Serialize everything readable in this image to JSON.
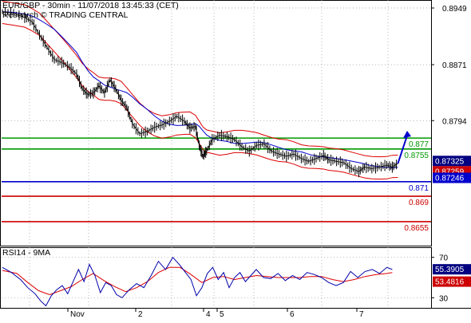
{
  "header": {
    "title": "EUR/GBP - 30min - 11/07/2018 13:45:33 (CET)",
    "subtitle": "Research © TRADING CENTRAL"
  },
  "rsi_label": "RSI14 - 9MA",
  "chart_data": [
    {
      "type": "candlestick",
      "title": "EUR/GBP - 30min - 11/07/2018 13:45:33 (CET)",
      "ylim": [
        0.8622,
        0.896
      ],
      "y_ticks": [
        "0.8949",
        "0.8871",
        "0.8794"
      ],
      "x_ticks": [
        "Nov",
        "2",
        "4",
        "5",
        "6",
        "7"
      ],
      "grid": true,
      "series_shown": [
        "price",
        "moving average",
        "bollinger bands"
      ],
      "price_path": [
        [
          0,
          0.8944
        ],
        [
          6,
          0.8942
        ],
        [
          12,
          0.8936
        ],
        [
          16,
          0.893
        ],
        [
          20,
          0.8912
        ],
        [
          24,
          0.8895
        ],
        [
          28,
          0.8878
        ],
        [
          32,
          0.8874
        ],
        [
          36,
          0.8868
        ],
        [
          40,
          0.8858
        ],
        [
          43,
          0.8838
        ],
        [
          46,
          0.883
        ],
        [
          49,
          0.8832
        ],
        [
          52,
          0.8842
        ],
        [
          55,
          0.8832
        ],
        [
          58,
          0.885
        ],
        [
          61,
          0.8838
        ],
        [
          64,
          0.8822
        ],
        [
          67,
          0.8812
        ],
        [
          70,
          0.879
        ],
        [
          74,
          0.8776
        ],
        [
          78,
          0.8779
        ],
        [
          82,
          0.8785
        ],
        [
          86,
          0.8788
        ],
        [
          90,
          0.8793
        ],
        [
          94,
          0.88
        ],
        [
          98,
          0.8793
        ],
        [
          101,
          0.8784
        ],
        [
          104,
          0.8786
        ],
        [
          106,
          0.876
        ],
        [
          108,
          0.8745
        ],
        [
          110,
          0.8752
        ],
        [
          113,
          0.8768
        ],
        [
          117,
          0.8774
        ],
        [
          121,
          0.8772
        ],
        [
          125,
          0.8768
        ],
        [
          129,
          0.8758
        ],
        [
          133,
          0.8752
        ],
        [
          137,
          0.876
        ],
        [
          141,
          0.8762
        ],
        [
          145,
          0.8752
        ],
        [
          149,
          0.8748
        ],
        [
          153,
          0.8745
        ],
        [
          157,
          0.8748
        ],
        [
          161,
          0.8742
        ],
        [
          165,
          0.8738
        ],
        [
          169,
          0.8742
        ],
        [
          173,
          0.8746
        ],
        [
          176,
          0.874
        ],
        [
          180,
          0.8738
        ],
        [
          184,
          0.8736
        ],
        [
          188,
          0.8728
        ],
        [
          192,
          0.8724
        ],
        [
          195,
          0.873
        ],
        [
          199,
          0.8728
        ],
        [
          203,
          0.873
        ],
        [
          207,
          0.8733
        ],
        [
          210,
          0.873
        ],
        [
          213,
          0.8735
        ]
      ],
      "projection": [
        [
          213,
          0.8735
        ],
        [
          218,
          0.878
        ]
      ],
      "levels": [
        {
          "value": 0.877,
          "label": "0.877",
          "color": "#009900"
        },
        {
          "value": 0.8755,
          "label": "0.8755",
          "color": "#009900"
        },
        {
          "value": 0.871,
          "label": "0.871",
          "color": "#0000cc"
        },
        {
          "value": 0.869,
          "label": "0.869",
          "color": "#cc0000"
        },
        {
          "value": 0.8655,
          "label": "0.8655",
          "color": "#cc0000"
        }
      ],
      "price_badges": [
        {
          "value": 0.87325,
          "label": "0.87325",
          "color": "#000080"
        },
        {
          "value": 0.87259,
          "label": "0.87259",
          "color": "#cc0000"
        },
        {
          "value": 0.87246,
          "label": "0.87246",
          "color": "#0000cc"
        }
      ]
    },
    {
      "type": "line",
      "title": "RSI14 - 9MA",
      "ylim": [
        20,
        80
      ],
      "y_ticks": [
        "70",
        "30"
      ],
      "rsi_path": [
        [
          0,
          60
        ],
        [
          5,
          55
        ],
        [
          10,
          48
        ],
        [
          14,
          40
        ],
        [
          18,
          34
        ],
        [
          21,
          27
        ],
        [
          24,
          22
        ],
        [
          27,
          32
        ],
        [
          30,
          38
        ],
        [
          33,
          42
        ],
        [
          36,
          34
        ],
        [
          39,
          46
        ],
        [
          42,
          58
        ],
        [
          45,
          46
        ],
        [
          48,
          63
        ],
        [
          51,
          52
        ],
        [
          54,
          35
        ],
        [
          57,
          45
        ],
        [
          60,
          42
        ],
        [
          63,
          33
        ],
        [
          66,
          30
        ],
        [
          70,
          38
        ],
        [
          74,
          44
        ],
        [
          78,
          40
        ],
        [
          82,
          52
        ],
        [
          86,
          66
        ],
        [
          90,
          58
        ],
        [
          94,
          70
        ],
        [
          98,
          62
        ],
        [
          101,
          55
        ],
        [
          104,
          48
        ],
        [
          107,
          32
        ],
        [
          110,
          40
        ],
        [
          113,
          54
        ],
        [
          116,
          60
        ],
        [
          119,
          48
        ],
        [
          122,
          55
        ],
        [
          125,
          40
        ],
        [
          128,
          50
        ],
        [
          131,
          55
        ],
        [
          134,
          46
        ],
        [
          137,
          52
        ],
        [
          140,
          58
        ],
        [
          144,
          50
        ],
        [
          148,
          49
        ],
        [
          152,
          54
        ],
        [
          156,
          47
        ],
        [
          160,
          52
        ],
        [
          164,
          48
        ],
        [
          168,
          55
        ],
        [
          172,
          53
        ],
        [
          176,
          50
        ],
        [
          180,
          45
        ],
        [
          184,
          42
        ],
        [
          188,
          45
        ],
        [
          192,
          56
        ],
        [
          196,
          50
        ],
        [
          200,
          56
        ],
        [
          204,
          58
        ],
        [
          208,
          54
        ],
        [
          212,
          60
        ],
        [
          215,
          58
        ]
      ],
      "ma_path": [
        [
          0,
          57
        ],
        [
          8,
          54
        ],
        [
          14,
          45
        ],
        [
          20,
          37
        ],
        [
          26,
          33
        ],
        [
          32,
          37
        ],
        [
          38,
          41
        ],
        [
          44,
          48
        ],
        [
          50,
          54
        ],
        [
          56,
          47
        ],
        [
          62,
          41
        ],
        [
          68,
          36
        ],
        [
          74,
          40
        ],
        [
          80,
          46
        ],
        [
          86,
          55
        ],
        [
          92,
          60
        ],
        [
          98,
          60
        ],
        [
          104,
          53
        ],
        [
          110,
          45
        ],
        [
          116,
          50
        ],
        [
          122,
          51
        ],
        [
          128,
          48
        ],
        [
          134,
          50
        ],
        [
          140,
          52
        ],
        [
          146,
          51
        ],
        [
          152,
          50
        ],
        [
          158,
          50
        ],
        [
          164,
          50
        ],
        [
          170,
          51
        ],
        [
          176,
          51
        ],
        [
          182,
          48
        ],
        [
          188,
          46
        ],
        [
          194,
          48
        ],
        [
          200,
          51
        ],
        [
          206,
          53
        ],
        [
          212,
          54
        ],
        [
          215,
          55
        ]
      ],
      "badges": [
        {
          "value": 55.3905,
          "label": "55.3905",
          "color": "#000080"
        },
        {
          "value": 53.4816,
          "label": "53.4816",
          "color": "#cc0000"
        }
      ]
    }
  ]
}
